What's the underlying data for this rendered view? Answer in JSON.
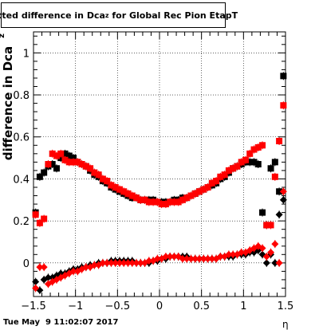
{
  "title": {
    "prefix": "Fitted difference in Dca",
    "subscript": "z",
    "suffix": " for Global Rec Pion EtapT"
  },
  "footer": {
    "timestamp": "Tue May  9 11:02:07 2017"
  },
  "chart_data": {
    "type": "scatter",
    "title": "Fitted difference in Dca_z for Global Rec Pion EtapT",
    "xlabel": "η",
    "ylabel": "difference in Dca",
    "ylabel_subscript": "z",
    "xlim": [
      -1.5,
      1.5
    ],
    "ylim": [
      -0.16,
      1.1
    ],
    "xticks": [
      -1.5,
      -1,
      -0.5,
      0,
      0.5,
      1,
      1.5
    ],
    "xtick_labels": [
      "−1.5",
      "−1",
      "−0.5",
      "0",
      "0.5",
      "1",
      "1.5"
    ],
    "yticks": [
      0,
      0.2,
      0.4,
      0.6,
      0.8,
      1
    ],
    "ytick_labels": [
      "0",
      "0.2",
      "0.4",
      "0.6",
      "0.8",
      "1"
    ],
    "grid": true,
    "series": [
      {
        "marker": "square",
        "color": "#000000",
        "points": [
          [
            -1.475,
            0.24
          ],
          [
            -1.425,
            0.41
          ],
          [
            -1.375,
            0.43
          ],
          [
            -1.325,
            0.46
          ],
          [
            -1.275,
            0.47
          ],
          [
            -1.225,
            0.45
          ],
          [
            -1.175,
            0.5
          ],
          [
            -1.125,
            0.52
          ],
          [
            -1.075,
            0.51
          ],
          [
            -1.025,
            0.5
          ],
          [
            -0.975,
            0.48
          ],
          [
            -0.925,
            0.47
          ],
          [
            -0.875,
            0.46
          ],
          [
            -0.825,
            0.44
          ],
          [
            -0.775,
            0.42
          ],
          [
            -0.725,
            0.41
          ],
          [
            -0.675,
            0.39
          ],
          [
            -0.625,
            0.38
          ],
          [
            -0.575,
            0.36
          ],
          [
            -0.525,
            0.35
          ],
          [
            -0.475,
            0.34
          ],
          [
            -0.425,
            0.33
          ],
          [
            -0.375,
            0.32
          ],
          [
            -0.325,
            0.31
          ],
          [
            -0.275,
            0.31
          ],
          [
            -0.225,
            0.3
          ],
          [
            -0.175,
            0.3
          ],
          [
            -0.125,
            0.3
          ],
          [
            -0.075,
            0.3
          ],
          [
            -0.025,
            0.29
          ],
          [
            0.025,
            0.29
          ],
          [
            0.075,
            0.29
          ],
          [
            0.125,
            0.29
          ],
          [
            0.175,
            0.3
          ],
          [
            0.225,
            0.3
          ],
          [
            0.275,
            0.31
          ],
          [
            0.325,
            0.31
          ],
          [
            0.375,
            0.32
          ],
          [
            0.425,
            0.33
          ],
          [
            0.475,
            0.34
          ],
          [
            0.525,
            0.35
          ],
          [
            0.575,
            0.36
          ],
          [
            0.625,
            0.37
          ],
          [
            0.675,
            0.38
          ],
          [
            0.725,
            0.4
          ],
          [
            0.775,
            0.41
          ],
          [
            0.825,
            0.43
          ],
          [
            0.875,
            0.45
          ],
          [
            0.925,
            0.46
          ],
          [
            0.975,
            0.47
          ],
          [
            1.025,
            0.48
          ],
          [
            1.075,
            0.48
          ],
          [
            1.125,
            0.48
          ],
          [
            1.175,
            0.47
          ],
          [
            1.225,
            0.24
          ],
          [
            1.275,
            0.18
          ],
          [
            1.325,
            0.45
          ],
          [
            1.375,
            0.48
          ],
          [
            1.425,
            0.34
          ],
          [
            1.475,
            0.89
          ]
        ]
      },
      {
        "marker": "square",
        "color": "#ff0000",
        "points": [
          [
            -1.475,
            0.23
          ],
          [
            -1.425,
            0.19
          ],
          [
            -1.375,
            0.21
          ],
          [
            -1.325,
            0.47
          ],
          [
            -1.275,
            0.52
          ],
          [
            -1.225,
            0.51
          ],
          [
            -1.175,
            0.52
          ],
          [
            -1.125,
            0.49
          ],
          [
            -1.075,
            0.48
          ],
          [
            -1.025,
            0.48
          ],
          [
            -0.975,
            0.48
          ],
          [
            -0.925,
            0.47
          ],
          [
            -0.875,
            0.46
          ],
          [
            -0.825,
            0.45
          ],
          [
            -0.775,
            0.43
          ],
          [
            -0.725,
            0.42
          ],
          [
            -0.675,
            0.4
          ],
          [
            -0.625,
            0.39
          ],
          [
            -0.575,
            0.37
          ],
          [
            -0.525,
            0.36
          ],
          [
            -0.475,
            0.35
          ],
          [
            -0.425,
            0.34
          ],
          [
            -0.375,
            0.33
          ],
          [
            -0.325,
            0.32
          ],
          [
            -0.275,
            0.31
          ],
          [
            -0.225,
            0.3
          ],
          [
            -0.175,
            0.3
          ],
          [
            -0.125,
            0.29
          ],
          [
            -0.075,
            0.29
          ],
          [
            -0.025,
            0.29
          ],
          [
            0.025,
            0.28
          ],
          [
            0.075,
            0.28
          ],
          [
            0.125,
            0.29
          ],
          [
            0.175,
            0.29
          ],
          [
            0.225,
            0.29
          ],
          [
            0.275,
            0.3
          ],
          [
            0.325,
            0.31
          ],
          [
            0.375,
            0.32
          ],
          [
            0.425,
            0.33
          ],
          [
            0.475,
            0.34
          ],
          [
            0.525,
            0.35
          ],
          [
            0.575,
            0.36
          ],
          [
            0.625,
            0.38
          ],
          [
            0.675,
            0.39
          ],
          [
            0.725,
            0.41
          ],
          [
            0.775,
            0.42
          ],
          [
            0.825,
            0.44
          ],
          [
            0.875,
            0.45
          ],
          [
            0.925,
            0.46
          ],
          [
            0.975,
            0.48
          ],
          [
            1.025,
            0.49
          ],
          [
            1.075,
            0.52
          ],
          [
            1.125,
            0.54
          ],
          [
            1.175,
            0.55
          ],
          [
            1.225,
            0.56
          ],
          [
            1.275,
            0.18
          ],
          [
            1.325,
            0.18
          ],
          [
            1.375,
            0.41
          ],
          [
            1.425,
            0.58
          ],
          [
            1.475,
            0.75
          ]
        ]
      },
      {
        "marker": "diamond",
        "color": "#000000",
        "points": [
          [
            -1.475,
            -0.09
          ],
          [
            -1.425,
            -0.13
          ],
          [
            -1.375,
            -0.08
          ],
          [
            -1.325,
            -0.07
          ],
          [
            -1.275,
            -0.07
          ],
          [
            -1.225,
            -0.06
          ],
          [
            -1.175,
            -0.05
          ],
          [
            -1.125,
            -0.05
          ],
          [
            -1.075,
            -0.04
          ],
          [
            -1.025,
            -0.03
          ],
          [
            -0.975,
            -0.03
          ],
          [
            -0.925,
            -0.02
          ],
          [
            -0.875,
            -0.02
          ],
          [
            -0.825,
            -0.01
          ],
          [
            -0.775,
            -0.01
          ],
          [
            -0.725,
            0.0
          ],
          [
            -0.675,
            0.0
          ],
          [
            -0.625,
            0.0
          ],
          [
            -0.575,
            0.01
          ],
          [
            -0.525,
            0.01
          ],
          [
            -0.475,
            0.01
          ],
          [
            -0.425,
            0.01
          ],
          [
            -0.375,
            0.01
          ],
          [
            -0.325,
            0.01
          ],
          [
            -0.275,
            0.0
          ],
          [
            -0.225,
            0.0
          ],
          [
            -0.175,
            0.0
          ],
          [
            -0.125,
            0.0
          ],
          [
            -0.075,
            0.01
          ],
          [
            -0.025,
            0.01
          ],
          [
            0.025,
            0.02
          ],
          [
            0.075,
            0.02
          ],
          [
            0.125,
            0.03
          ],
          [
            0.175,
            0.03
          ],
          [
            0.225,
            0.03
          ],
          [
            0.275,
            0.03
          ],
          [
            0.325,
            0.03
          ],
          [
            0.375,
            0.02
          ],
          [
            0.425,
            0.02
          ],
          [
            0.475,
            0.02
          ],
          [
            0.525,
            0.02
          ],
          [
            0.575,
            0.02
          ],
          [
            0.625,
            0.02
          ],
          [
            0.675,
            0.02
          ],
          [
            0.725,
            0.03
          ],
          [
            0.775,
            0.03
          ],
          [
            0.825,
            0.03
          ],
          [
            0.875,
            0.03
          ],
          [
            0.925,
            0.04
          ],
          [
            0.975,
            0.04
          ],
          [
            1.025,
            0.04
          ],
          [
            1.075,
            0.05
          ],
          [
            1.125,
            0.05
          ],
          [
            1.175,
            0.06
          ],
          [
            1.225,
            0.04
          ],
          [
            1.275,
            0.0
          ],
          [
            1.325,
            0.04
          ],
          [
            1.375,
            0.0
          ],
          [
            1.425,
            0.23
          ],
          [
            1.475,
            0.3
          ]
        ]
      },
      {
        "marker": "diamond",
        "color": "#ff0000",
        "points": [
          [
            -1.475,
            -0.12
          ],
          [
            -1.425,
            -0.02
          ],
          [
            -1.375,
            -0.02
          ],
          [
            -1.325,
            -0.1
          ],
          [
            -1.275,
            -0.09
          ],
          [
            -1.225,
            -0.08
          ],
          [
            -1.175,
            -0.07
          ],
          [
            -1.125,
            -0.06
          ],
          [
            -1.075,
            -0.05
          ],
          [
            -1.025,
            -0.04
          ],
          [
            -0.975,
            -0.04
          ],
          [
            -0.925,
            -0.03
          ],
          [
            -0.875,
            -0.02
          ],
          [
            -0.825,
            -0.02
          ],
          [
            -0.775,
            -0.01
          ],
          [
            -0.725,
            -0.01
          ],
          [
            -0.675,
            0.0
          ],
          [
            -0.625,
            0.0
          ],
          [
            -0.575,
            0.0
          ],
          [
            -0.525,
            0.0
          ],
          [
            -0.475,
            0.0
          ],
          [
            -0.425,
            0.0
          ],
          [
            -0.375,
            0.0
          ],
          [
            -0.325,
            0.0
          ],
          [
            -0.275,
            0.0
          ],
          [
            -0.225,
            0.0
          ],
          [
            -0.175,
            0.0
          ],
          [
            -0.125,
            0.01
          ],
          [
            -0.075,
            0.01
          ],
          [
            -0.025,
            0.02
          ],
          [
            0.025,
            0.02
          ],
          [
            0.075,
            0.03
          ],
          [
            0.125,
            0.03
          ],
          [
            0.175,
            0.03
          ],
          [
            0.225,
            0.03
          ],
          [
            0.275,
            0.02
          ],
          [
            0.325,
            0.02
          ],
          [
            0.375,
            0.02
          ],
          [
            0.425,
            0.02
          ],
          [
            0.475,
            0.02
          ],
          [
            0.525,
            0.02
          ],
          [
            0.575,
            0.02
          ],
          [
            0.625,
            0.02
          ],
          [
            0.675,
            0.02
          ],
          [
            0.725,
            0.03
          ],
          [
            0.775,
            0.03
          ],
          [
            0.825,
            0.04
          ],
          [
            0.875,
            0.04
          ],
          [
            0.925,
            0.04
          ],
          [
            0.975,
            0.05
          ],
          [
            1.025,
            0.05
          ],
          [
            1.075,
            0.06
          ],
          [
            1.125,
            0.07
          ],
          [
            1.175,
            0.08
          ],
          [
            1.225,
            0.07
          ],
          [
            1.275,
            0.03
          ],
          [
            1.325,
            0.05
          ],
          [
            1.375,
            0.09
          ],
          [
            1.425,
            0.0
          ],
          [
            1.475,
            0.34
          ]
        ]
      }
    ]
  }
}
